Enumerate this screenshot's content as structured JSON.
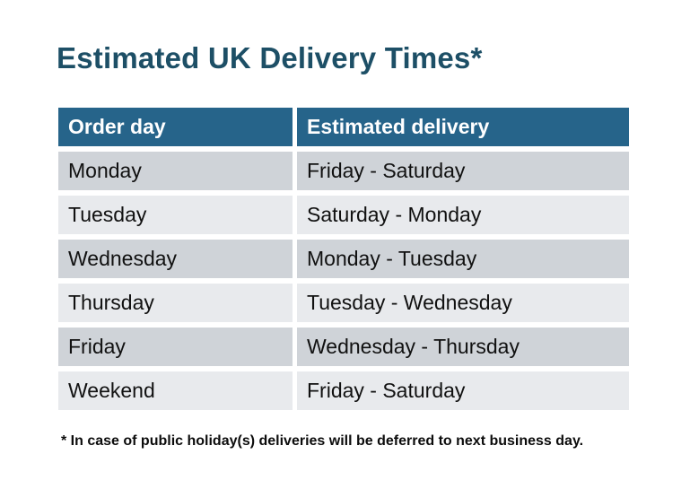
{
  "title": "Estimated UK Delivery Times*",
  "table": {
    "headers": [
      "Order day",
      "Estimated delivery"
    ],
    "rows": [
      {
        "order_day": "Monday",
        "estimated_delivery": "Friday - Saturday"
      },
      {
        "order_day": "Tuesday",
        "estimated_delivery": "Saturday - Monday"
      },
      {
        "order_day": "Wednesday",
        "estimated_delivery": "Monday - Tuesday"
      },
      {
        "order_day": "Thursday",
        "estimated_delivery": "Tuesday - Wednesday"
      },
      {
        "order_day": "Friday",
        "estimated_delivery": "Wednesday - Thursday"
      },
      {
        "order_day": "Weekend",
        "estimated_delivery": "Friday - Saturday"
      }
    ]
  },
  "footnote": "* In case of public holiday(s) deliveries will be deferred to next business day.",
  "colors": {
    "background": "#ffffff",
    "title_text": "#1d4f66",
    "header_bg": "#26648a",
    "header_text": "#ffffff",
    "row_dark": "#cfd3d8",
    "row_light": "#e8eaed",
    "cell_text": "#111111",
    "footnote_text": "#0c0c0c"
  }
}
